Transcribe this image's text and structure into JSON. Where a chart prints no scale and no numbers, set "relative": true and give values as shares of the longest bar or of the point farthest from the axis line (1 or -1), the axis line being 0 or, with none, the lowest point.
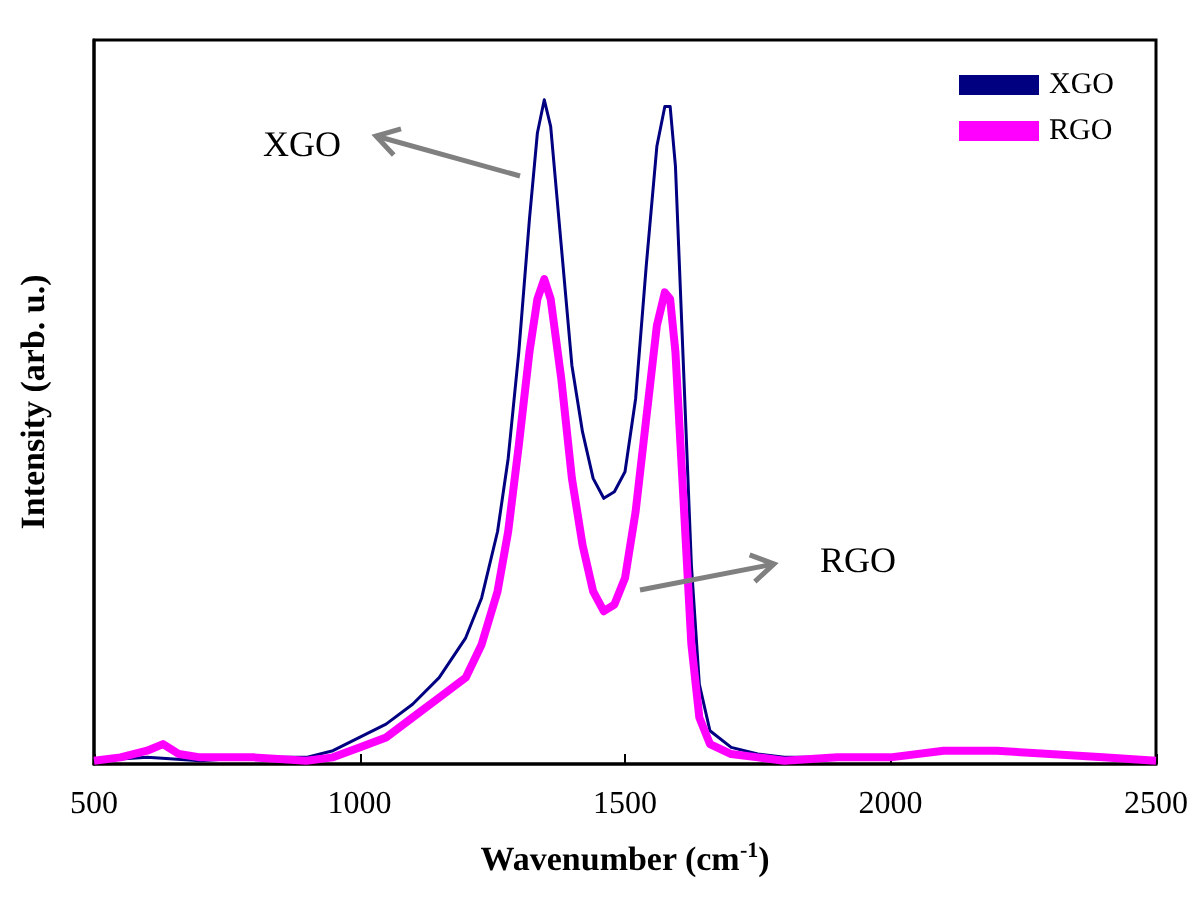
{
  "chart_data": {
    "type": "line",
    "relative": true,
    "xlabel": "Wavenumber (cm$^{-1}$)",
    "ylabel": "Intensity (arb. u.)",
    "xlim": [
      500,
      2500
    ],
    "xticks": [
      500,
      1000,
      1500,
      2000,
      2500
    ],
    "legend": "top right",
    "grid": false,
    "line_style": "solid",
    "annotations": [
      "XGO",
      "RGO"
    ],
    "series": [
      {
        "name": "XGO",
        "color": "#000080",
        "x": [
          500,
          600,
          700,
          800,
          900,
          950,
          1000,
          1050,
          1100,
          1150,
          1200,
          1230,
          1260,
          1280,
          1300,
          1320,
          1335,
          1348,
          1360,
          1380,
          1400,
          1420,
          1440,
          1460,
          1480,
          1500,
          1520,
          1540,
          1560,
          1575,
          1585,
          1595,
          1610,
          1625,
          1640,
          1660,
          1700,
          1750,
          1800,
          1900
        ],
        "values": [
          0.005,
          0.01,
          0.005,
          0.01,
          0.01,
          0.02,
          0.04,
          0.06,
          0.09,
          0.13,
          0.19,
          0.25,
          0.35,
          0.46,
          0.62,
          0.82,
          0.95,
          1.0,
          0.96,
          0.78,
          0.6,
          0.5,
          0.43,
          0.4,
          0.41,
          0.44,
          0.55,
          0.75,
          0.93,
          0.99,
          0.99,
          0.9,
          0.6,
          0.3,
          0.12,
          0.05,
          0.025,
          0.015,
          0.01,
          0.01
        ]
      },
      {
        "name": "RGO",
        "color": "#ff00ff",
        "x": [
          500,
          550,
          600,
          630,
          660,
          700,
          800,
          900,
          950,
          1000,
          1050,
          1100,
          1150,
          1200,
          1230,
          1260,
          1280,
          1300,
          1320,
          1335,
          1348,
          1360,
          1380,
          1400,
          1420,
          1440,
          1460,
          1480,
          1500,
          1520,
          1540,
          1560,
          1575,
          1585,
          1595,
          1610,
          1625,
          1640,
          1660,
          1700,
          1750,
          1800,
          1900,
          2000,
          2100,
          2200,
          2300,
          2400,
          2500
        ],
        "values": [
          0.005,
          0.01,
          0.02,
          0.03,
          0.015,
          0.01,
          0.01,
          0.005,
          0.01,
          0.025,
          0.04,
          0.07,
          0.1,
          0.13,
          0.18,
          0.26,
          0.35,
          0.48,
          0.62,
          0.7,
          0.73,
          0.7,
          0.58,
          0.43,
          0.33,
          0.26,
          0.23,
          0.24,
          0.28,
          0.38,
          0.52,
          0.66,
          0.71,
          0.7,
          0.62,
          0.4,
          0.18,
          0.07,
          0.03,
          0.015,
          0.01,
          0.005,
          0.01,
          0.01,
          0.02,
          0.02,
          0.015,
          0.01,
          0.005
        ]
      }
    ]
  }
}
